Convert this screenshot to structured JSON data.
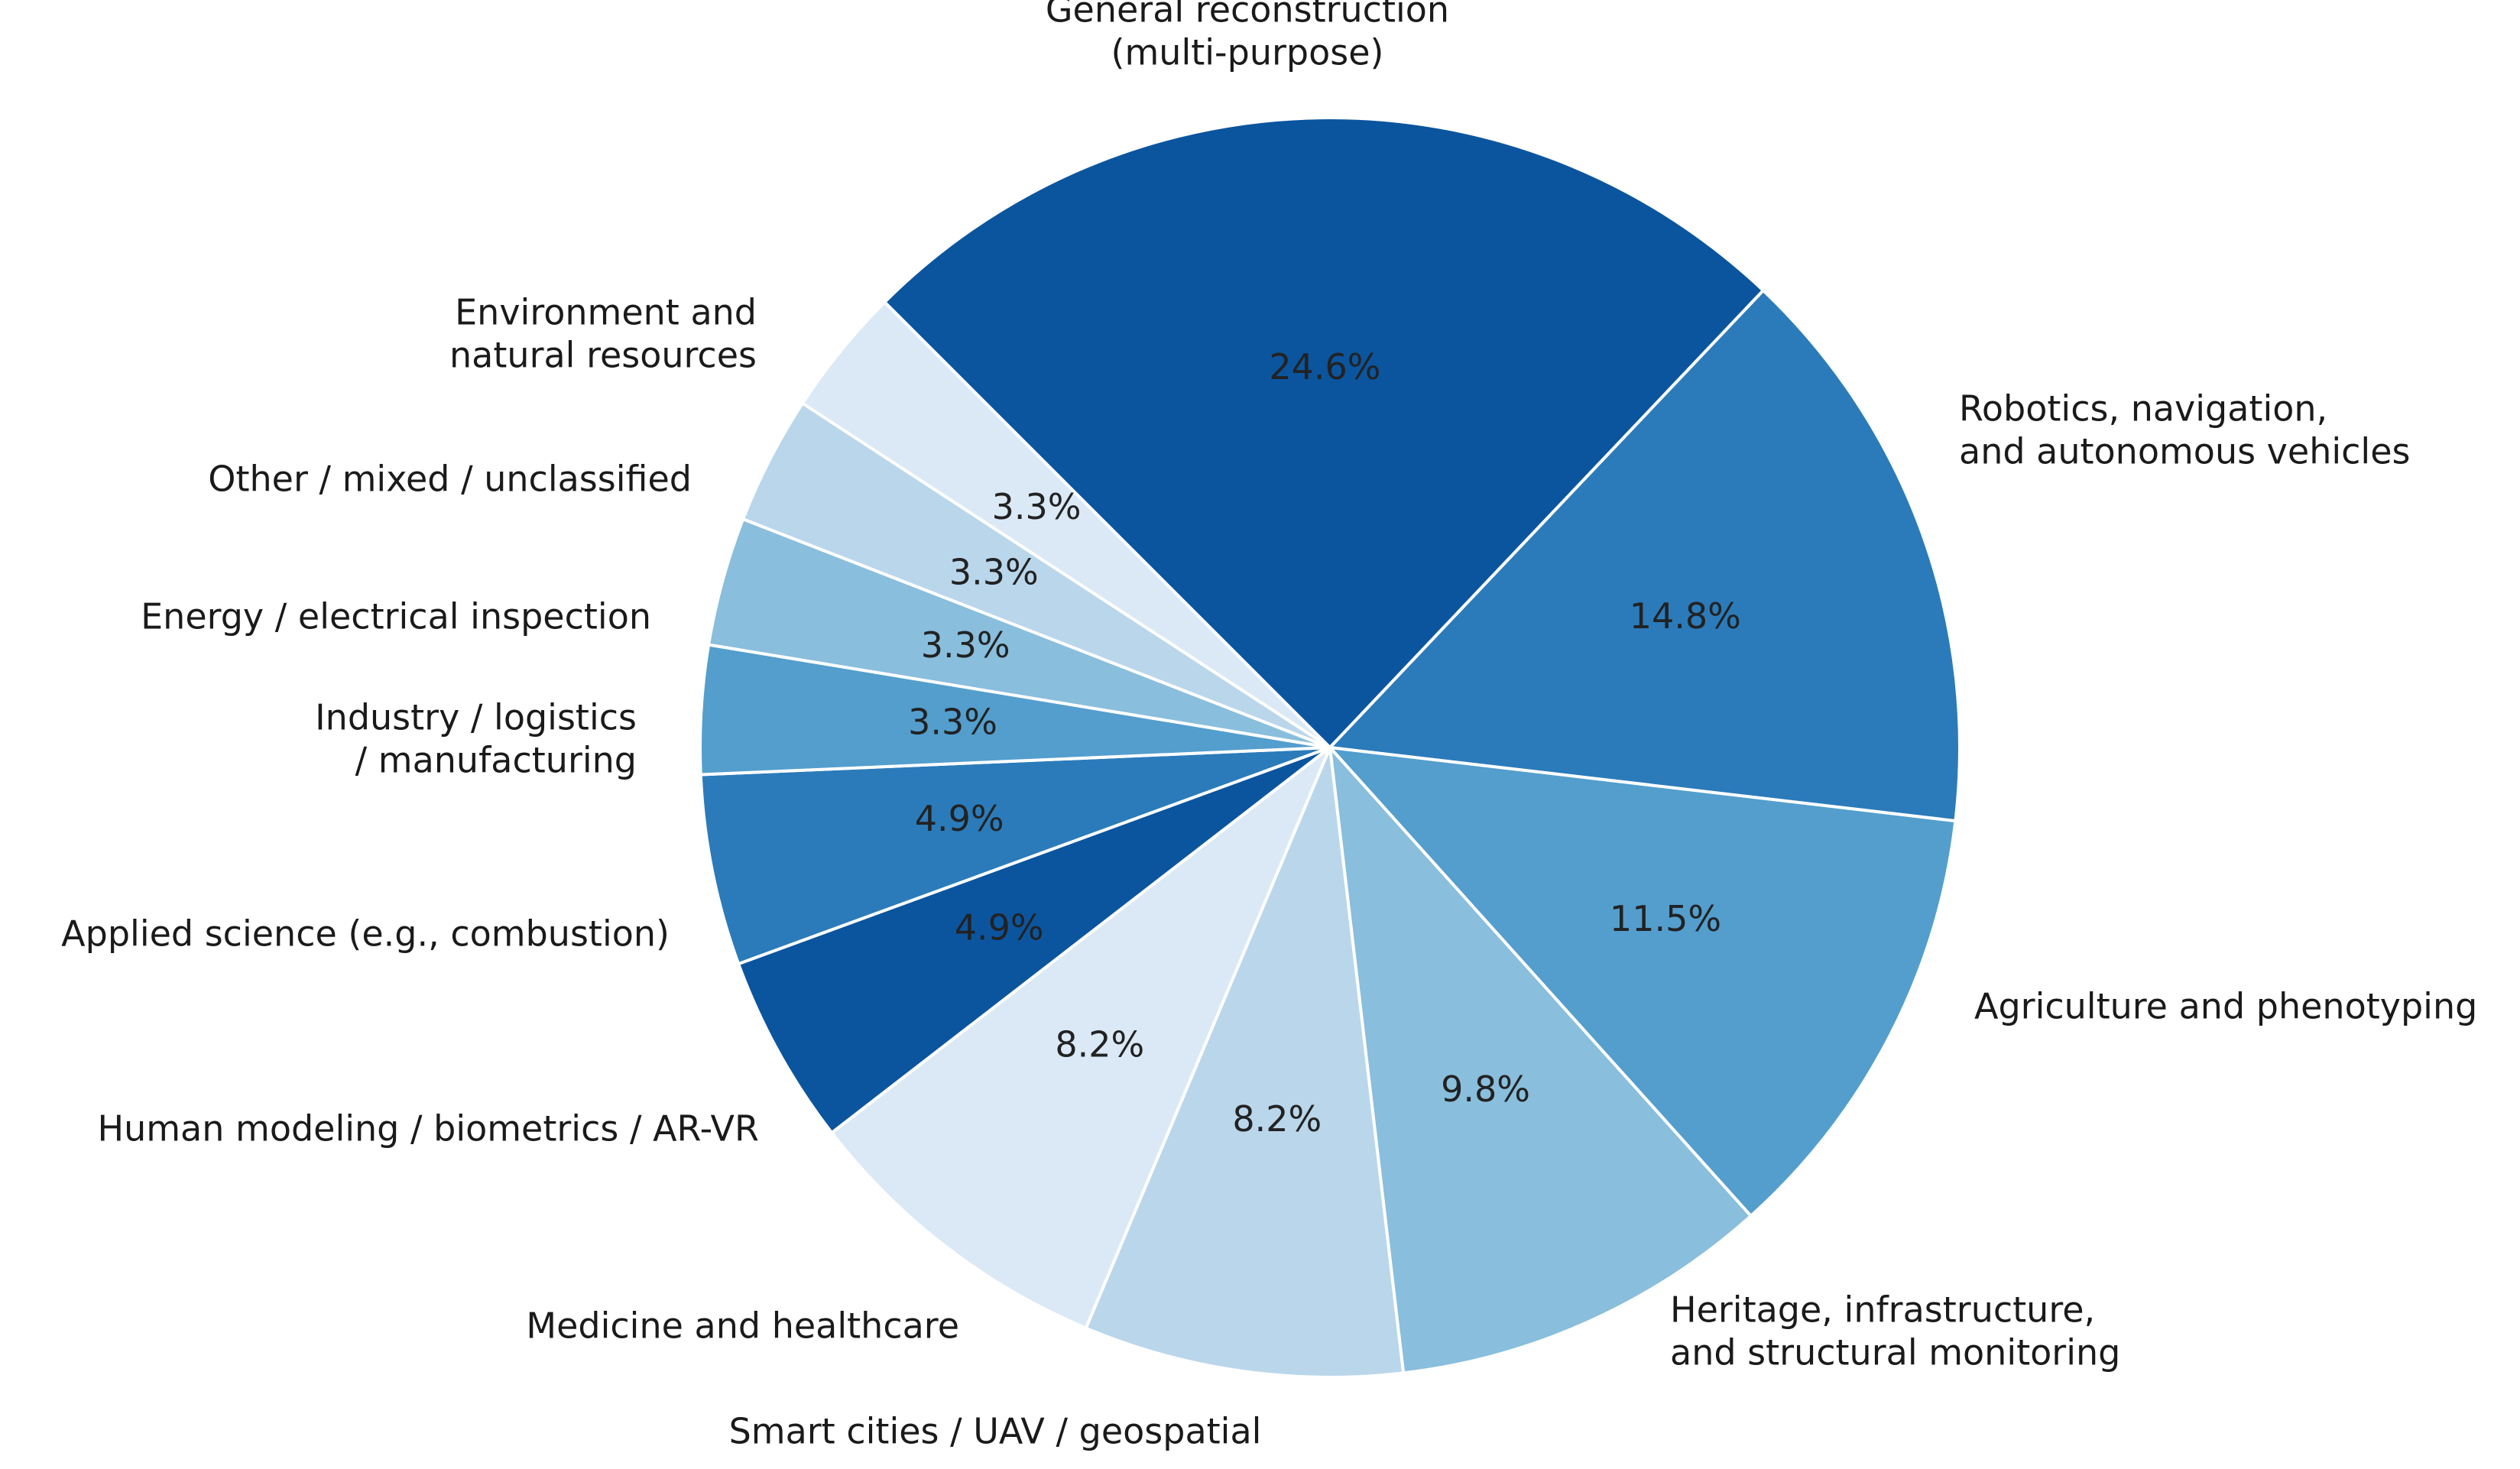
{
  "chart_data": {
    "type": "pie",
    "title": "",
    "start_angle_deg": 135,
    "direction": "clockwise",
    "slices": [
      {
        "label": "General reconstruction\n(multi-purpose)",
        "value": 24.6,
        "pct_label": "24.6%",
        "color": "#0b559f"
      },
      {
        "label": "Robotics, navigation,\nand autonomous vehicles",
        "value": 14.8,
        "pct_label": "14.8%",
        "color": "#2b7bba"
      },
      {
        "label": "Agriculture and phenotyping",
        "value": 11.5,
        "pct_label": "11.5%",
        "color": "#539ecd"
      },
      {
        "label": "Heritage, infrastructure,\nand structural monitoring",
        "value": 9.8,
        "pct_label": "9.8%",
        "color": "#89bedc"
      },
      {
        "label": "Smart cities / UAV / geospatial",
        "value": 8.2,
        "pct_label": "8.2%",
        "color": "#bad6eb"
      },
      {
        "label": "Medicine and healthcare",
        "value": 8.2,
        "pct_label": "8.2%",
        "color": "#dbe9f6"
      },
      {
        "label": "Human modeling / biometrics / AR-VR",
        "value": 4.9,
        "pct_label": "4.9%",
        "color": "#0b559f"
      },
      {
        "label": "Applied science (e.g., combustion)",
        "value": 4.9,
        "pct_label": "4.9%",
        "color": "#2b7bba"
      },
      {
        "label": "Industry / logistics\n/ manufacturing",
        "value": 3.3,
        "pct_label": "3.3%",
        "color": "#539ecd"
      },
      {
        "label": "Energy / electrical inspection",
        "value": 3.3,
        "pct_label": "3.3%",
        "color": "#89bedc"
      },
      {
        "label": "Other / mixed / unclassified",
        "value": 3.3,
        "pct_label": "3.3%",
        "color": "#bad6eb"
      },
      {
        "label": "Environment and\nnatural resources",
        "value": 3.3,
        "pct_label": "3.3%",
        "color": "#dbe9f6"
      }
    ]
  }
}
